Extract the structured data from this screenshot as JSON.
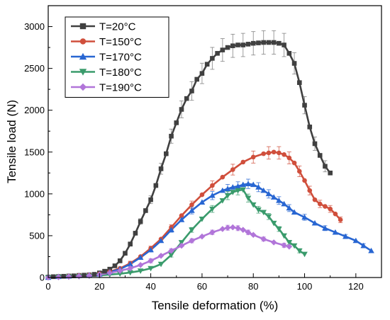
{
  "chart_data": {
    "type": "line",
    "title": "",
    "xlabel": "Tensile deformation (%)",
    "ylabel": "Tensile load (N)",
    "xlim": [
      0,
      130
    ],
    "ylim": [
      0,
      3250
    ],
    "xticks": [
      0,
      20,
      40,
      60,
      80,
      100,
      120
    ],
    "yticks": [
      0,
      500,
      1000,
      1500,
      2000,
      2500,
      3000
    ],
    "grid": false,
    "legend_position": "top-left",
    "series": [
      {
        "name": "T=20°C",
        "color": "#404040",
        "marker": "square",
        "error_bars": true,
        "points": [
          [
            0,
            5
          ],
          [
            2,
            10
          ],
          [
            4,
            12
          ],
          [
            6,
            15
          ],
          [
            8,
            18
          ],
          [
            10,
            20
          ],
          [
            12,
            25
          ],
          [
            14,
            28
          ],
          [
            16,
            32
          ],
          [
            18,
            38
          ],
          [
            20,
            55
          ],
          [
            22,
            75
          ],
          [
            24,
            100
          ],
          [
            26,
            140
          ],
          [
            28,
            200
          ],
          [
            30,
            290
          ],
          [
            32,
            400
          ],
          [
            34,
            530
          ],
          [
            36,
            670
          ],
          [
            38,
            800
          ],
          [
            40,
            930
          ],
          [
            42,
            1100
          ],
          [
            44,
            1300
          ],
          [
            46,
            1480
          ],
          [
            48,
            1690
          ],
          [
            50,
            1850
          ],
          [
            52,
            2010
          ],
          [
            54,
            2140
          ],
          [
            56,
            2230
          ],
          [
            58,
            2370
          ],
          [
            60,
            2440
          ],
          [
            62,
            2550
          ],
          [
            64,
            2620
          ],
          [
            66,
            2680
          ],
          [
            68,
            2720
          ],
          [
            70,
            2750
          ],
          [
            72,
            2770
          ],
          [
            74,
            2780
          ],
          [
            76,
            2780
          ],
          [
            78,
            2790
          ],
          [
            80,
            2800
          ],
          [
            82,
            2805
          ],
          [
            84,
            2810
          ],
          [
            86,
            2810
          ],
          [
            88,
            2810
          ],
          [
            90,
            2800
          ],
          [
            92,
            2780
          ],
          [
            94,
            2680
          ],
          [
            96,
            2560
          ],
          [
            98,
            2330
          ],
          [
            100,
            2060
          ],
          [
            102,
            1800
          ],
          [
            104,
            1600
          ],
          [
            106,
            1460
          ],
          [
            108,
            1330
          ],
          [
            110,
            1250
          ]
        ]
      },
      {
        "name": "T=150°C",
        "color": "#d04f3c",
        "marker": "circle",
        "error_bars": true,
        "points": [
          [
            0,
            0
          ],
          [
            4,
            10
          ],
          [
            8,
            18
          ],
          [
            12,
            25
          ],
          [
            16,
            32
          ],
          [
            20,
            45
          ],
          [
            24,
            70
          ],
          [
            28,
            110
          ],
          [
            32,
            170
          ],
          [
            36,
            250
          ],
          [
            40,
            350
          ],
          [
            44,
            460
          ],
          [
            48,
            600
          ],
          [
            52,
            740
          ],
          [
            56,
            870
          ],
          [
            60,
            990
          ],
          [
            64,
            1100
          ],
          [
            68,
            1200
          ],
          [
            72,
            1290
          ],
          [
            76,
            1380
          ],
          [
            80,
            1440
          ],
          [
            84,
            1480
          ],
          [
            86,
            1490
          ],
          [
            88,
            1500
          ],
          [
            90,
            1490
          ],
          [
            92,
            1470
          ],
          [
            94,
            1430
          ],
          [
            96,
            1370
          ],
          [
            98,
            1270
          ],
          [
            100,
            1160
          ],
          [
            102,
            1040
          ],
          [
            104,
            930
          ],
          [
            106,
            880
          ],
          [
            108,
            850
          ],
          [
            110,
            820
          ],
          [
            112,
            760
          ],
          [
            114,
            690
          ]
        ]
      },
      {
        "name": "T=170°C",
        "color": "#2866d2",
        "marker": "triangle-up",
        "error_bars": true,
        "points": [
          [
            0,
            0
          ],
          [
            4,
            10
          ],
          [
            8,
            15
          ],
          [
            12,
            22
          ],
          [
            16,
            30
          ],
          [
            20,
            40
          ],
          [
            24,
            65
          ],
          [
            28,
            100
          ],
          [
            32,
            160
          ],
          [
            36,
            240
          ],
          [
            40,
            330
          ],
          [
            44,
            440
          ],
          [
            48,
            570
          ],
          [
            52,
            690
          ],
          [
            56,
            800
          ],
          [
            60,
            900
          ],
          [
            64,
            980
          ],
          [
            68,
            1040
          ],
          [
            70,
            1060
          ],
          [
            72,
            1080
          ],
          [
            74,
            1090
          ],
          [
            76,
            1110
          ],
          [
            78,
            1120
          ],
          [
            80,
            1110
          ],
          [
            82,
            1080
          ],
          [
            84,
            1040
          ],
          [
            86,
            1000
          ],
          [
            88,
            960
          ],
          [
            90,
            920
          ],
          [
            92,
            880
          ],
          [
            94,
            830
          ],
          [
            96,
            780
          ],
          [
            100,
            720
          ],
          [
            104,
            650
          ],
          [
            108,
            590
          ],
          [
            112,
            540
          ],
          [
            116,
            490
          ],
          [
            120,
            440
          ],
          [
            123,
            380
          ],
          [
            126,
            320
          ]
        ]
      },
      {
        "name": "T=180°C",
        "color": "#3a9b6c",
        "marker": "triangle-down",
        "error_bars": true,
        "points": [
          [
            0,
            0
          ],
          [
            4,
            5
          ],
          [
            8,
            8
          ],
          [
            12,
            12
          ],
          [
            16,
            18
          ],
          [
            20,
            25
          ],
          [
            24,
            35
          ],
          [
            28,
            45
          ],
          [
            32,
            60
          ],
          [
            36,
            80
          ],
          [
            40,
            110
          ],
          [
            44,
            160
          ],
          [
            48,
            270
          ],
          [
            52,
            420
          ],
          [
            56,
            570
          ],
          [
            60,
            700
          ],
          [
            64,
            820
          ],
          [
            68,
            920
          ],
          [
            70,
            980
          ],
          [
            72,
            1020
          ],
          [
            74,
            1040
          ],
          [
            76,
            1050
          ],
          [
            78,
            950
          ],
          [
            80,
            870
          ],
          [
            82,
            810
          ],
          [
            84,
            780
          ],
          [
            86,
            730
          ],
          [
            88,
            650
          ],
          [
            90,
            580
          ],
          [
            92,
            500
          ],
          [
            94,
            420
          ],
          [
            96,
            380
          ],
          [
            98,
            320
          ],
          [
            100,
            280
          ]
        ]
      },
      {
        "name": "T=190°C",
        "color": "#b175d9",
        "marker": "diamond",
        "error_bars": true,
        "points": [
          [
            0,
            0
          ],
          [
            4,
            5
          ],
          [
            8,
            10
          ],
          [
            12,
            15
          ],
          [
            16,
            22
          ],
          [
            20,
            35
          ],
          [
            24,
            55
          ],
          [
            28,
            80
          ],
          [
            32,
            110
          ],
          [
            36,
            150
          ],
          [
            40,
            200
          ],
          [
            44,
            260
          ],
          [
            48,
            320
          ],
          [
            52,
            380
          ],
          [
            56,
            440
          ],
          [
            60,
            490
          ],
          [
            64,
            540
          ],
          [
            68,
            580
          ],
          [
            70,
            595
          ],
          [
            72,
            600
          ],
          [
            74,
            590
          ],
          [
            76,
            570
          ],
          [
            78,
            540
          ],
          [
            80,
            510
          ],
          [
            84,
            460
          ],
          [
            88,
            420
          ],
          [
            92,
            385
          ],
          [
            94,
            370
          ]
        ]
      }
    ]
  }
}
